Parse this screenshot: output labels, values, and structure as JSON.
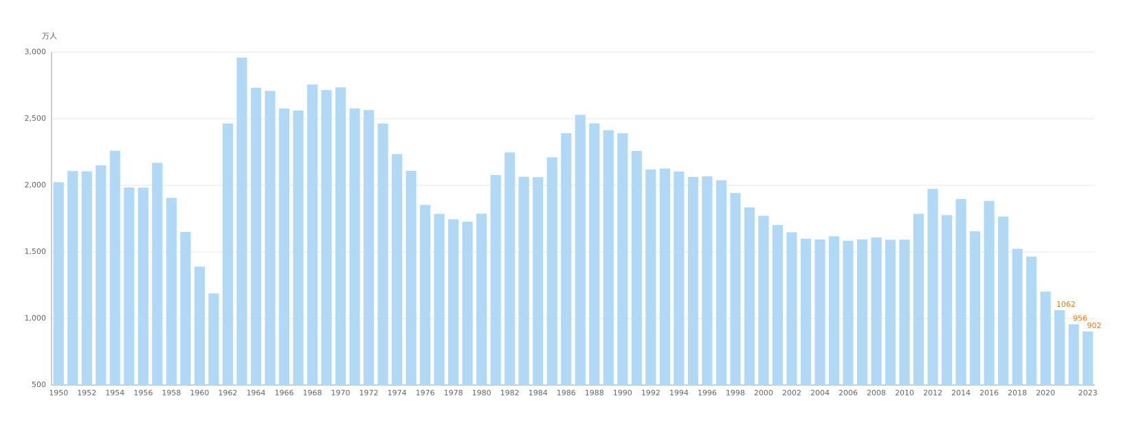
{
  "chart_data": {
    "type": "bar",
    "y_axis_label": "万人",
    "categories": [
      "1950",
      null,
      "1952",
      null,
      "1954",
      null,
      "1956",
      null,
      "1958",
      null,
      "1960",
      null,
      "1962",
      null,
      "1964",
      null,
      "1966",
      null,
      "1968",
      null,
      "1970",
      null,
      "1972",
      null,
      "1974",
      null,
      "1976",
      null,
      "1978",
      null,
      "1980",
      null,
      "1982",
      null,
      "1984",
      null,
      "1986",
      null,
      "1988",
      null,
      "1990",
      null,
      "1992",
      null,
      "1994",
      null,
      "1996",
      null,
      "1998",
      null,
      "2000",
      null,
      "2002",
      null,
      "2004",
      null,
      "2006",
      null,
      "2008",
      null,
      "2010",
      null,
      "2012",
      null,
      "2014",
      null,
      "2016",
      null,
      "2018",
      null,
      "2020",
      null,
      null,
      "2023"
    ],
    "values": [
      2023,
      2107,
      2105,
      2151,
      2260,
      1984,
      1983,
      2169,
      1906,
      1650,
      1389,
      1188,
      2464,
      2959,
      2733,
      2709,
      2577,
      2563,
      2757,
      2715,
      2736,
      2578,
      2566,
      2464,
      2235,
      2109,
      1853,
      1786,
      1745,
      1727,
      1787,
      2078,
      2247,
      2064,
      2061,
      2210,
      2391,
      2529,
      2465,
      2414,
      2391,
      2258,
      2119,
      2126,
      2104,
      2063,
      2067,
      2038,
      1942,
      1834,
      1771,
      1702,
      1647,
      1599,
      1593,
      1617,
      1584,
      1594,
      1608,
      1591,
      1592,
      1786,
      1973,
      1776,
      1897,
      1655,
      1883,
      1765,
      1523,
      1465,
      1202,
      1062,
      956,
      902
    ],
    "value_labels": [
      null,
      null,
      null,
      null,
      null,
      null,
      null,
      null,
      null,
      null,
      null,
      null,
      null,
      null,
      null,
      null,
      null,
      null,
      null,
      null,
      null,
      null,
      null,
      null,
      null,
      null,
      null,
      null,
      null,
      null,
      null,
      null,
      null,
      null,
      null,
      null,
      null,
      null,
      null,
      null,
      null,
      null,
      null,
      null,
      null,
      null,
      null,
      null,
      null,
      null,
      null,
      null,
      null,
      null,
      null,
      null,
      null,
      null,
      null,
      null,
      null,
      null,
      null,
      null,
      null,
      null,
      null,
      null,
      null,
      null,
      null,
      "1062",
      "956",
      "902"
    ],
    "color": "#b1d8f5",
    "label_color": "#e07b20",
    "ylim": [
      500,
      3000
    ],
    "yticks": [
      500,
      {
        "value": 1000,
        "label": "1,000"
      },
      {
        "value": 1500,
        "label": "1,500"
      },
      {
        "value": 2000,
        "label": "2,000"
      },
      {
        "value": 2500,
        "label": "2,500"
      },
      {
        "value": 3000,
        "label": "3,000"
      }
    ],
    "grid": true
  }
}
